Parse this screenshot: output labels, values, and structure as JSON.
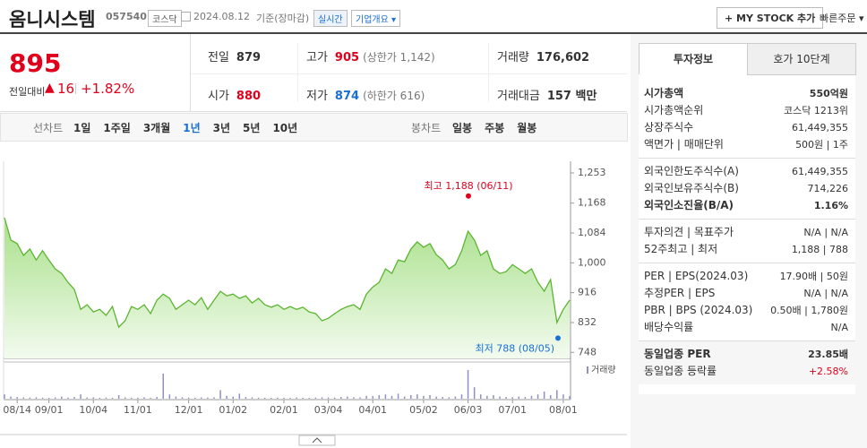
{
  "header": {
    "name": "옴니시스템",
    "code": "057540",
    "market": "코스닥",
    "date": "2024.08.12",
    "basis": "기준(장마감)",
    "realtime": "실시간",
    "overview": "기업개요",
    "mystock": "MY STOCK 추가",
    "quick_order": "빠른주문"
  },
  "quote": {
    "price": "895",
    "change_label": "전일대비",
    "change": "16",
    "rate": "+1.82%",
    "items": [
      {
        "label": "전일",
        "value": "879"
      },
      {
        "label": "고가",
        "value": "905",
        "note": "(상한가 1,142)"
      },
      {
        "label": "거래량",
        "value": "176,602"
      },
      {
        "label": "시가",
        "value": "880"
      },
      {
        "label": "저가",
        "value": "874",
        "note": "(하한가 616)"
      },
      {
        "label": "거래대금",
        "value": "157 백만"
      }
    ]
  },
  "tabs": {
    "line_label": "선차트",
    "line_items": [
      "1일",
      "1주일",
      "3개월",
      "1년",
      "3년",
      "5년",
      "10년"
    ],
    "candle_label": "봉차트",
    "candle_items": [
      "일봉",
      "주봉",
      "월봉"
    ]
  },
  "chart_data": [
    {
      "type": "line",
      "color": "#5cb531",
      "ylim": [
        731,
        1311
      ],
      "yticks": [
        {
          "value": 1253,
          "label": "1,253"
        },
        {
          "value": 1168,
          "label": "1,168"
        },
        {
          "value": 1084,
          "label": "1,084"
        },
        {
          "value": 1000,
          "label": "1,000"
        },
        916,
        832,
        748
      ],
      "values": [
        1127,
        1064,
        1054,
        1021,
        1039,
        1008,
        1034,
        1008,
        983,
        970,
        945,
        925,
        869,
        882,
        862,
        869,
        852,
        877,
        819,
        837,
        877,
        869,
        882,
        857,
        895,
        912,
        900,
        869,
        882,
        895,
        882,
        902,
        869,
        895,
        920,
        907,
        912,
        900,
        907,
        887,
        900,
        882,
        875,
        882,
        869,
        877,
        869,
        875,
        862,
        857,
        837,
        844,
        857,
        869,
        877,
        882,
        869,
        912,
        932,
        945,
        983,
        970,
        1008,
        1003,
        1039,
        1059,
        1044,
        1054,
        1023,
        1008,
        983,
        995,
        1034,
        1089,
        1064,
        1021,
        1034,
        983,
        970,
        975,
        995,
        983,
        970,
        983,
        945,
        920,
        953,
        832,
        869,
        895
      ],
      "annotations": [
        {
          "label": "최고 1,188 (06/11)",
          "value": 1188,
          "color": "#e0001b"
        },
        {
          "label": "최저 788 (08/05)",
          "value": 788,
          "color": "#1a6fd6"
        }
      ]
    },
    {
      "type": "bar",
      "legend": "거래량",
      "color": "#8e8ec9",
      "ylim": [
        0,
        2500000
      ],
      "categories": [
        null,
        null,
        "08/14",
        null,
        null,
        null,
        null,
        "09/01",
        null,
        null,
        null,
        null,
        null,
        null,
        "10/04",
        null,
        null,
        null,
        null,
        null,
        null,
        "11/01",
        null,
        null,
        null,
        null,
        null,
        null,
        null,
        "12/01",
        null,
        null,
        null,
        null,
        null,
        null,
        "01/02",
        null,
        null,
        null,
        null,
        null,
        null,
        null,
        "02/01",
        null,
        null,
        null,
        null,
        null,
        null,
        "03/04",
        null,
        null,
        null,
        null,
        null,
        null,
        "04/01",
        null,
        null,
        null,
        null,
        null,
        null,
        null,
        "05/02",
        null,
        null,
        null,
        null,
        null,
        null,
        "06/03",
        null,
        null,
        null,
        null,
        null,
        null,
        "07/01",
        null,
        null,
        null,
        null,
        null,
        null,
        null,
        "08/01",
        null
      ],
      "values": [
        300000,
        150000,
        120000,
        90000,
        80000,
        100000,
        70000,
        60000,
        90000,
        150000,
        80000,
        120000,
        300000,
        90000,
        100000,
        70000,
        80000,
        60000,
        250000,
        90000,
        70000,
        80000,
        100000,
        60000,
        120000,
        1750000,
        300000,
        150000,
        100000,
        80000,
        70000,
        90000,
        80000,
        100000,
        600000,
        200000,
        150000,
        350000,
        120000,
        90000,
        80000,
        70000,
        60000,
        80000,
        70000,
        60000,
        90000,
        70000,
        60000,
        80000,
        100000,
        90000,
        80000,
        120000,
        150000,
        100000,
        90000,
        200000,
        180000,
        250000,
        300000,
        200000,
        350000,
        150000,
        250000,
        300000,
        200000,
        250000,
        150000,
        120000,
        100000,
        150000,
        300000,
        2000000,
        800000,
        300000,
        200000,
        250000,
        150000,
        120000,
        100000,
        150000,
        120000,
        200000,
        300000,
        500000,
        250000,
        600000,
        300000,
        176602
      ]
    }
  ],
  "sidebar": {
    "tabs": [
      "투자정보",
      "호가 10단계"
    ],
    "sections": [
      {
        "rows": [
          {
            "label": "시가총액",
            "value": "550억원"
          },
          {
            "label": "시가총액순위",
            "value": "코스닥 1213위"
          },
          {
            "label": "상장주식수",
            "value": "61,449,355"
          },
          {
            "label": "액면가 | 매매단위",
            "value": "500원 | 1주"
          }
        ]
      },
      {
        "rows": [
          {
            "label": "외국인한도주식수(A)",
            "value": "61,449,355"
          },
          {
            "label": "외국인보유주식수(B)",
            "value": "714,226"
          },
          {
            "label": "외국인소진율(B/A)",
            "value": "1.16%"
          }
        ]
      },
      {
        "rows": [
          {
            "label": "투자의견 | 목표주가",
            "value": "N/A | N/A"
          },
          {
            "label": "52주최고 | 최저",
            "value": "1,188 | 788"
          }
        ]
      },
      {
        "rows": [
          {
            "label": "PER | EPS(2024.03)",
            "value": "17.90배 | 50원"
          },
          {
            "label": "추정PER | EPS",
            "value": "N/A | N/A"
          },
          {
            "label": "PBR | BPS (2024.03)",
            "value": "0.50배 | 1,780원"
          },
          {
            "label": "배당수익률",
            "value": "N/A"
          }
        ]
      },
      {
        "rows": [
          {
            "label": "동일업종 PER",
            "value": "23.85배"
          },
          {
            "label": "동일업종 등락률",
            "value": "+2.58%"
          }
        ]
      }
    ]
  }
}
